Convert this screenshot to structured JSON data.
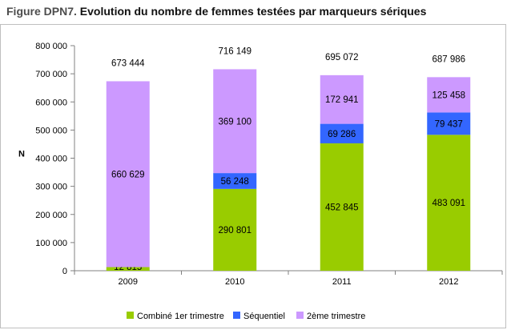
{
  "figure": {
    "title_prefix": "Figure DPN7.",
    "title_main": "Evolution du nombre de femmes testées par marqueurs sériques"
  },
  "chart_data": {
    "type": "bar",
    "stacked": true,
    "categories": [
      "2009",
      "2010",
      "2011",
      "2012"
    ],
    "series": [
      {
        "name": "Combiné 1er trimestre",
        "color": "#99cc00",
        "values": [
          12815,
          290801,
          452845,
          483091
        ],
        "labels": [
          "12 815",
          "290 801",
          "452 845",
          "483 091"
        ]
      },
      {
        "name": "Séquentiel",
        "color": "#3366ff",
        "values": [
          0,
          56248,
          69286,
          79437
        ],
        "labels": [
          "",
          "56 248",
          "69 286",
          "79 437"
        ]
      },
      {
        "name": "2ème trimestre",
        "color": "#cc99ff",
        "values": [
          660629,
          369100,
          172941,
          125458
        ],
        "labels": [
          "660 629",
          "369 100",
          "172 941",
          "125 458"
        ]
      }
    ],
    "totals": [
      673444,
      716149,
      695072,
      687986
    ],
    "total_labels": [
      "673 444",
      "716 149",
      "695 072",
      "687 986"
    ],
    "ylabel": "N",
    "ylim": [
      0,
      800000
    ],
    "yticks": [
      0,
      100000,
      200000,
      300000,
      400000,
      500000,
      600000,
      700000,
      800000
    ],
    "ytick_labels": [
      "0",
      "100 000",
      "200 000",
      "300 000",
      "400 000",
      "500 000",
      "600 000",
      "700 000",
      "800 000"
    ],
    "legend_position": "bottom",
    "legend_labels": [
      "Combiné 1er trimestre",
      "Séquentiel",
      "2ème trimestre"
    ],
    "grid": false
  }
}
